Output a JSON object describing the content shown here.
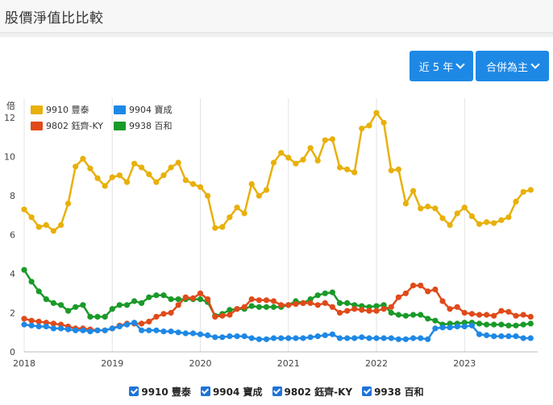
{
  "page": {
    "title": "股價淨值比比較"
  },
  "controls": {
    "range_label": "近 5 年",
    "mode_label": "合併為主"
  },
  "legend_bottom": [
    "9910 豐泰",
    "9904 寶成",
    "9802 鈺齊-KY",
    "9938 百和"
  ],
  "chart_data": {
    "type": "line",
    "ylabel": "倍",
    "ylim": [
      0,
      13
    ],
    "yticks": [
      0,
      2,
      4,
      6,
      8,
      10,
      12
    ],
    "xlim": [
      2018.0,
      2023.83
    ],
    "xticks": [
      2018,
      2019,
      2020,
      2021,
      2022,
      2023
    ],
    "grid": "vertical",
    "legend_position": "top-left",
    "x": [
      2018.0,
      2018.083,
      2018.167,
      2018.25,
      2018.333,
      2018.417,
      2018.5,
      2018.583,
      2018.667,
      2018.75,
      2018.833,
      2018.917,
      2019.0,
      2019.083,
      2019.167,
      2019.25,
      2019.333,
      2019.417,
      2019.5,
      2019.583,
      2019.667,
      2019.75,
      2019.833,
      2019.917,
      2020.0,
      2020.083,
      2020.167,
      2020.25,
      2020.333,
      2020.417,
      2020.5,
      2020.583,
      2020.667,
      2020.75,
      2020.833,
      2020.917,
      2021.0,
      2021.083,
      2021.167,
      2021.25,
      2021.333,
      2021.417,
      2021.5,
      2021.583,
      2021.667,
      2021.75,
      2021.833,
      2021.917,
      2022.0,
      2022.083,
      2022.167,
      2022.25,
      2022.333,
      2022.417,
      2022.5,
      2022.583,
      2022.667,
      2022.75,
      2022.833,
      2022.917,
      2023.0,
      2023.083,
      2023.167,
      2023.25,
      2023.333,
      2023.417,
      2023.5,
      2023.583,
      2023.667,
      2023.75
    ],
    "series": [
      {
        "name": "9910 豐泰",
        "color": "#e8b00a",
        "values": [
          7.3,
          6.9,
          6.4,
          6.5,
          6.2,
          6.5,
          7.6,
          9.5,
          9.9,
          9.4,
          8.9,
          8.5,
          8.95,
          9.05,
          8.7,
          9.65,
          9.45,
          9.1,
          8.7,
          9.05,
          9.45,
          9.7,
          8.8,
          8.6,
          8.45,
          8.0,
          6.35,
          6.4,
          6.9,
          7.4,
          7.1,
          8.6,
          8.0,
          8.3,
          9.7,
          10.2,
          9.95,
          9.65,
          9.85,
          10.45,
          9.8,
          10.85,
          10.9,
          9.45,
          9.35,
          9.2,
          11.45,
          11.6,
          12.25,
          11.75,
          9.3,
          9.35,
          7.6,
          8.25,
          7.35,
          7.45,
          7.35,
          6.85,
          6.5,
          7.1,
          7.4,
          6.95,
          6.55,
          6.65,
          6.6,
          6.75,
          6.9,
          7.7,
          8.2,
          8.3
        ]
      },
      {
        "name": "9904 寶成",
        "color": "#1e88e5",
        "values": [
          1.4,
          1.35,
          1.3,
          1.3,
          1.2,
          1.2,
          1.15,
          1.1,
          1.1,
          1.05,
          1.1,
          1.1,
          1.2,
          1.3,
          1.4,
          1.5,
          1.1,
          1.1,
          1.1,
          1.05,
          1.05,
          1.0,
          0.95,
          0.95,
          0.9,
          0.85,
          0.75,
          0.75,
          0.8,
          0.8,
          0.8,
          0.7,
          0.65,
          0.65,
          0.7,
          0.7,
          0.7,
          0.7,
          0.7,
          0.75,
          0.8,
          0.85,
          0.9,
          0.7,
          0.7,
          0.7,
          0.75,
          0.7,
          0.7,
          0.7,
          0.7,
          0.65,
          0.65,
          0.7,
          0.7,
          0.65,
          1.2,
          1.25,
          1.25,
          1.3,
          1.3,
          1.35,
          0.9,
          0.85,
          0.8,
          0.8,
          0.8,
          0.8,
          0.7,
          0.7
        ]
      },
      {
        "name": "9802 鈺齊-KY",
        "color": "#e04a1a",
        "values": [
          1.7,
          1.6,
          1.55,
          1.5,
          1.45,
          1.4,
          1.3,
          1.2,
          1.2,
          1.15,
          1.1,
          1.1,
          1.2,
          1.35,
          1.45,
          1.45,
          1.45,
          1.55,
          1.8,
          1.95,
          2.0,
          2.4,
          2.8,
          2.75,
          3.0,
          2.7,
          1.8,
          1.85,
          1.9,
          2.2,
          2.3,
          2.7,
          2.65,
          2.65,
          2.6,
          2.4,
          2.4,
          2.45,
          2.5,
          2.5,
          2.4,
          2.5,
          2.3,
          2.0,
          2.1,
          2.2,
          2.15,
          2.1,
          2.1,
          2.2,
          2.3,
          2.8,
          3.0,
          3.4,
          3.4,
          3.1,
          3.2,
          2.6,
          2.2,
          2.3,
          2.0,
          1.95,
          1.9,
          1.9,
          1.85,
          2.1,
          2.05,
          1.85,
          1.9,
          1.8
        ]
      },
      {
        "name": "9938 百和",
        "color": "#1a9a28",
        "values": [
          4.2,
          3.6,
          3.1,
          2.7,
          2.5,
          2.4,
          2.1,
          2.3,
          2.4,
          1.8,
          1.8,
          1.8,
          2.2,
          2.4,
          2.4,
          2.6,
          2.5,
          2.8,
          2.9,
          2.9,
          2.7,
          2.7,
          2.7,
          2.7,
          2.7,
          2.55,
          1.85,
          1.95,
          2.15,
          2.2,
          2.2,
          2.35,
          2.3,
          2.3,
          2.3,
          2.3,
          2.4,
          2.6,
          2.5,
          2.7,
          2.9,
          3.0,
          3.05,
          2.5,
          2.5,
          2.4,
          2.35,
          2.3,
          2.35,
          2.4,
          2.0,
          1.9,
          1.85,
          1.9,
          1.9,
          1.7,
          1.6,
          1.4,
          1.45,
          1.45,
          1.5,
          1.5,
          1.45,
          1.4,
          1.4,
          1.4,
          1.35,
          1.35,
          1.4,
          1.45
        ]
      }
    ]
  }
}
